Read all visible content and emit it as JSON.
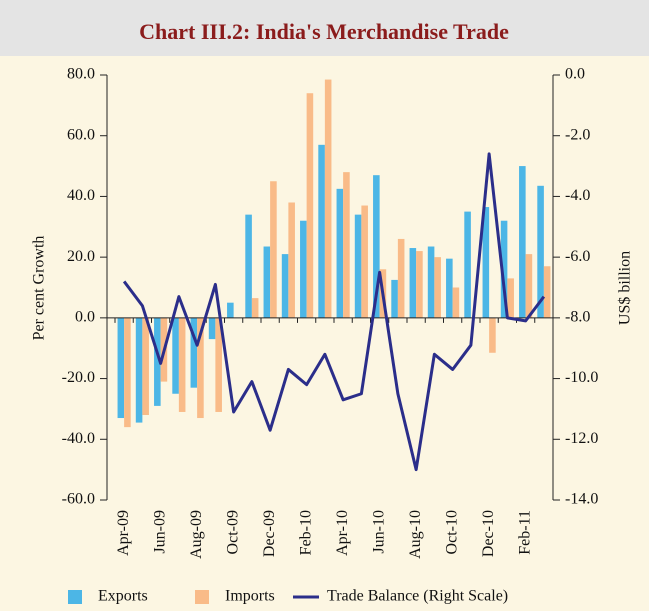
{
  "chart_data": {
    "type": "bar",
    "title": "Chart III.2: India's Merchandise Trade",
    "y_label": "Per cent Growth",
    "y2_label": "US$ billion",
    "categories": [
      "Apr-09",
      null,
      "Jun-09",
      null,
      "Aug-09",
      null,
      "Oct-09",
      null,
      "Dec-09",
      null,
      "Feb-10",
      null,
      "Apr-10",
      null,
      "Jun-10",
      null,
      "Aug-10",
      null,
      "Oct-10",
      null,
      "Dec-10",
      null,
      "Feb-11",
      null
    ],
    "series": [
      {
        "name": "Exports",
        "type": "bar",
        "color": "#4cb6e6",
        "values": [
          -33,
          -34.5,
          -29,
          -25,
          -23,
          -7,
          5,
          34,
          23.5,
          21,
          32,
          57,
          42.5,
          34,
          47,
          12.5,
          23,
          23.5,
          19.5,
          35,
          36.5,
          32,
          50,
          43.5
        ]
      },
      {
        "name": "Imports",
        "type": "bar",
        "color": "#f9bb88",
        "values": [
          -36,
          -32,
          -21,
          -31,
          -33,
          -31,
          0,
          6.5,
          45,
          38,
          74,
          78.5,
          48,
          37,
          16,
          26,
          22,
          20,
          10,
          0,
          -11.5,
          13,
          21,
          17
        ]
      },
      {
        "name": "Trade Balance (Right Scale)",
        "type": "line",
        "axis": "y2",
        "color": "#2b2e8a",
        "values": [
          -6.8,
          -7.6,
          -9.5,
          -7.3,
          -8.9,
          -6.9,
          -11.1,
          -10.1,
          -11.7,
          -9.7,
          -10.2,
          -9.2,
          -10.7,
          -10.5,
          -6.5,
          -10.5,
          -13.0,
          -9.2,
          -9.7,
          -8.9,
          -2.6,
          -8.0,
          -8.1,
          -7.3
        ]
      }
    ],
    "ylim": [
      -60,
      80
    ],
    "yticks": [
      {
        "value": -60,
        "label": "-60.0"
      },
      {
        "value": -40,
        "label": "-40.0"
      },
      {
        "value": -20,
        "label": "-20.0"
      },
      {
        "value": 0,
        "label": "0.0"
      },
      {
        "value": 20,
        "label": "20.0"
      },
      {
        "value": 40,
        "label": "40.0"
      },
      {
        "value": 60,
        "label": "60.0"
      },
      {
        "value": 80,
        "label": "80.0"
      }
    ],
    "y2lim": [
      -14,
      0
    ],
    "y2ticks": [
      {
        "value": -14,
        "label": "-14.0"
      },
      {
        "value": -12,
        "label": "-12.0"
      },
      {
        "value": -10,
        "label": "-10.0"
      },
      {
        "value": -8,
        "label": "-8.0"
      },
      {
        "value": -6,
        "label": "-6.0"
      },
      {
        "value": -4,
        "label": "-4.0"
      },
      {
        "value": -2,
        "label": "-2.0"
      },
      {
        "value": 0,
        "label": "0.0"
      }
    ],
    "grid": false
  }
}
